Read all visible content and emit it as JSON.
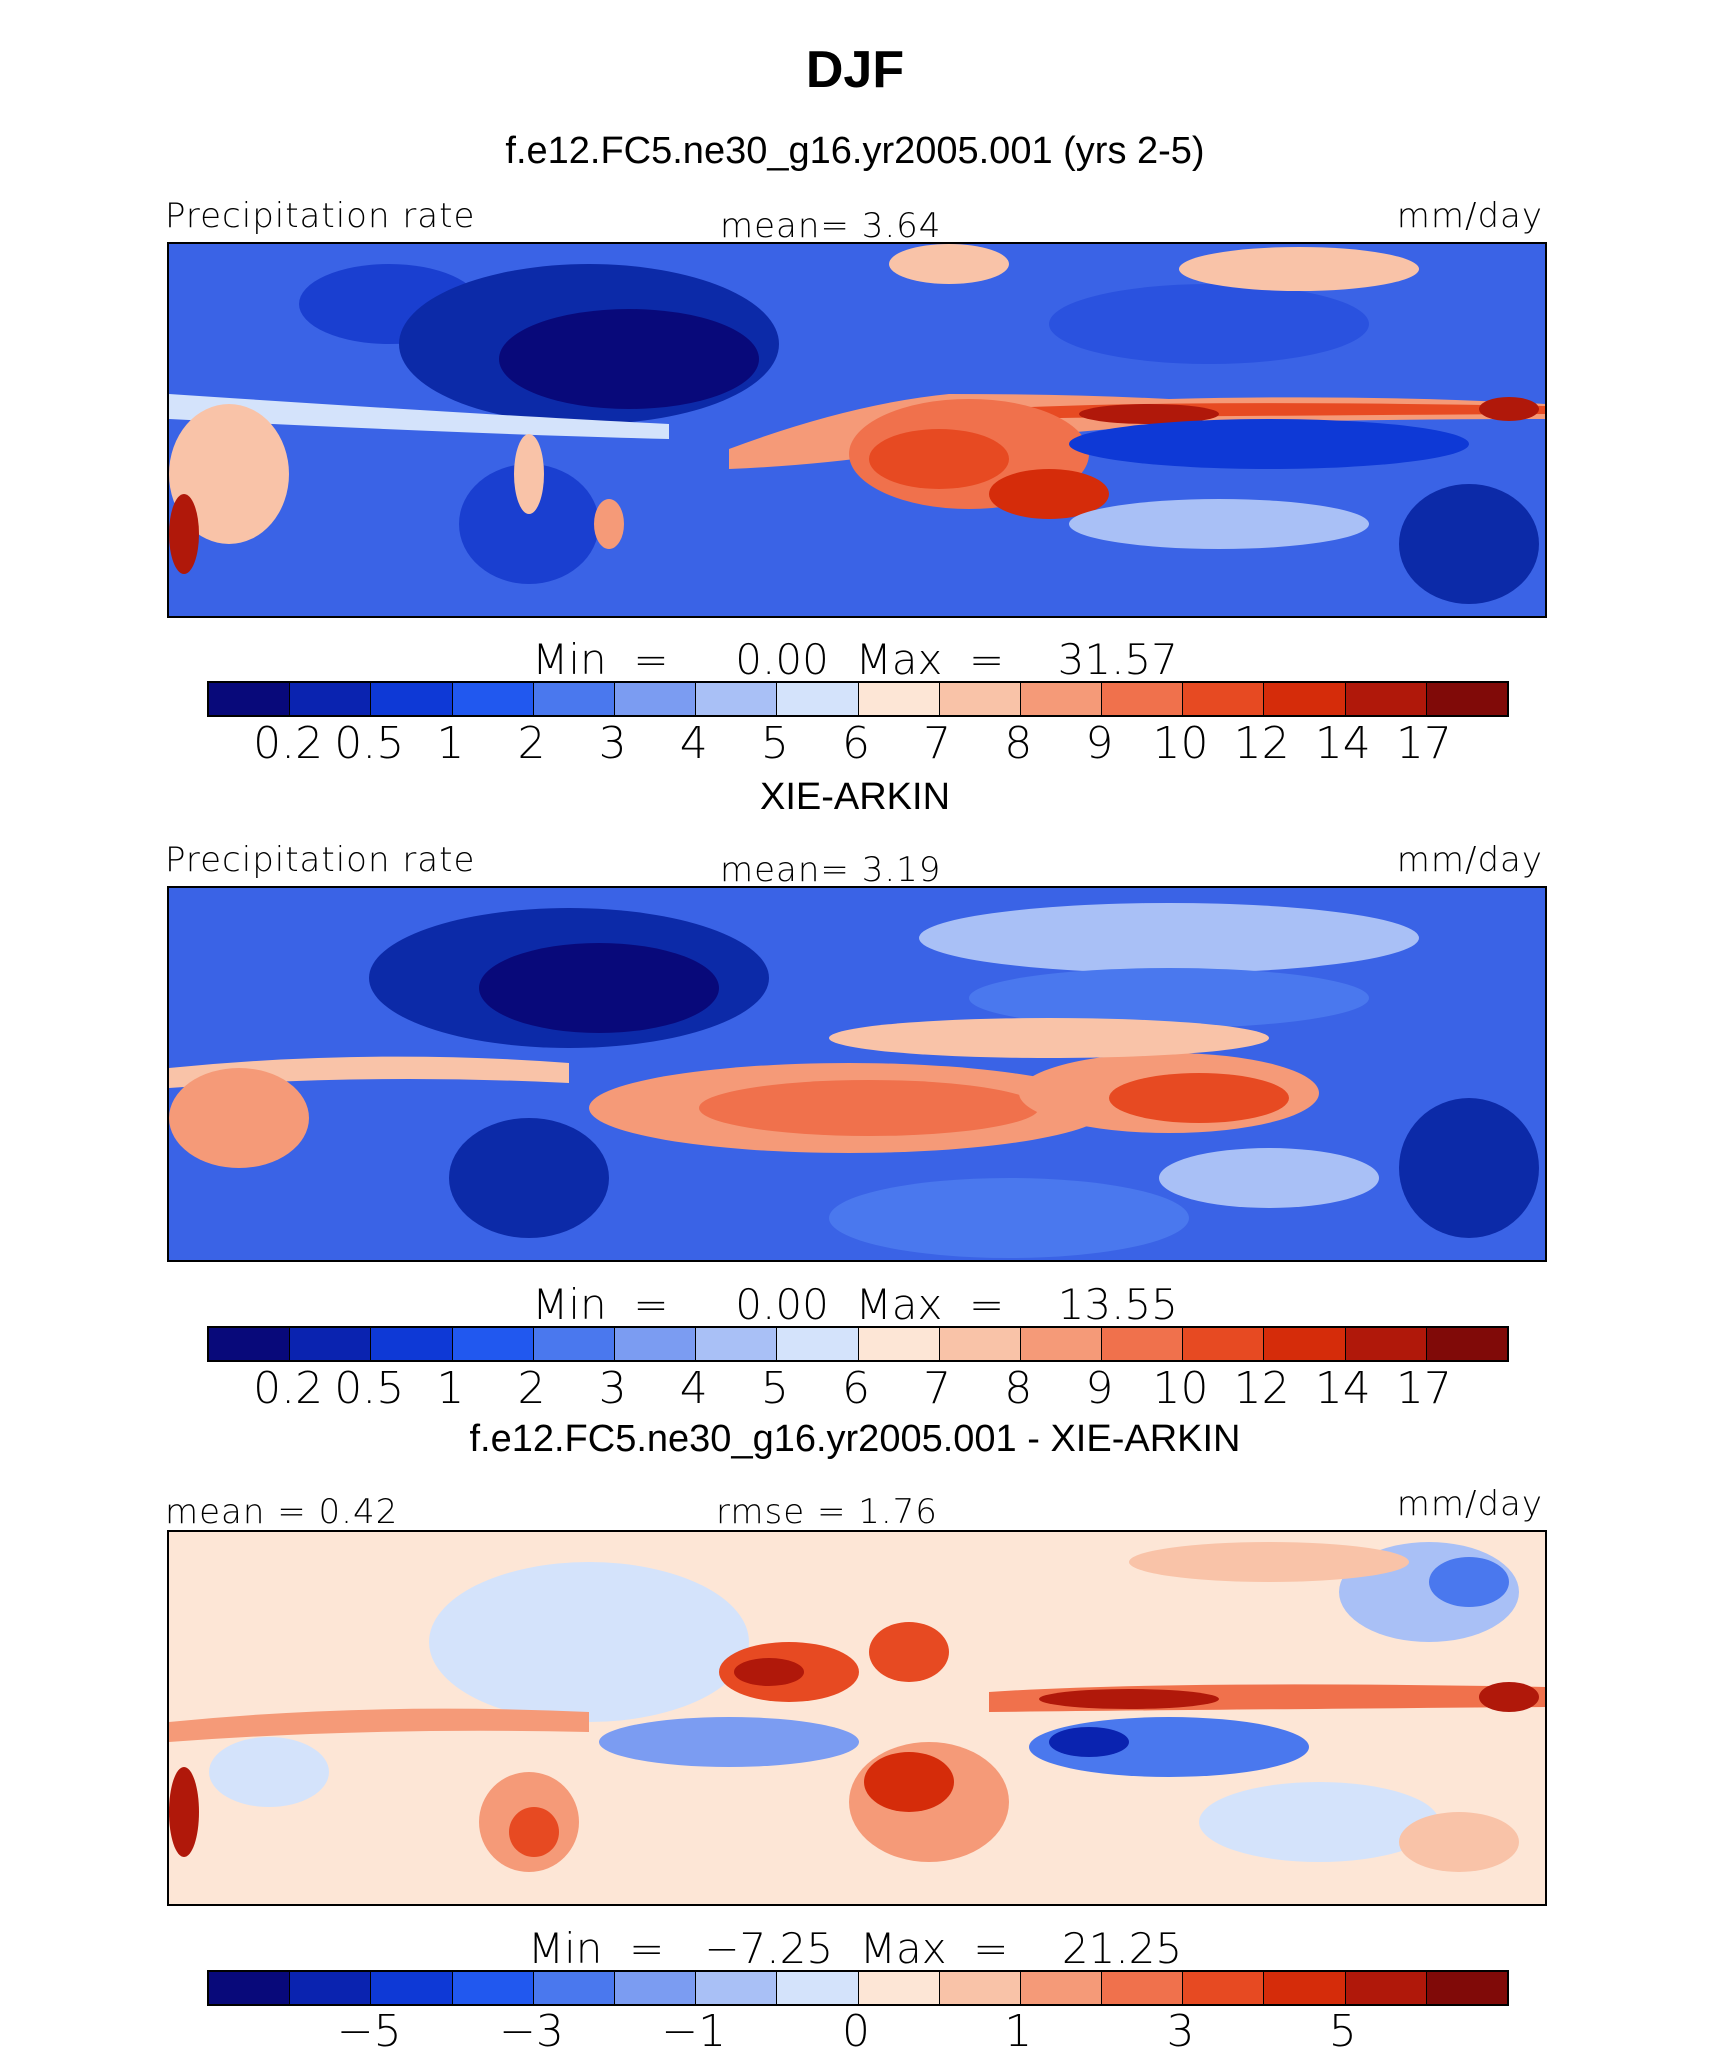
{
  "title": "DJF",
  "colors": {
    "levels_scale": [
      "#08097a",
      "#0a23b0",
      "#0e39d6",
      "#2158ef",
      "#4a78ee",
      "#7b9cf2",
      "#a9c0f6",
      "#d4e3fb",
      "#fde6d6",
      "#f9c3a8",
      "#f59a78",
      "#f0714c",
      "#e74a22",
      "#d52c0a",
      "#b0180a",
      "#800a08"
    ],
    "diff_scale": [
      "#08097a",
      "#0a23b0",
      "#0e39d6",
      "#2158ef",
      "#4a78ee",
      "#7b9cf2",
      "#a9c0f6",
      "#d4e3fb",
      "#fde6d6",
      "#f9c3a8",
      "#f59a78",
      "#f0714c",
      "#e74a22",
      "#d52c0a",
      "#b0180a",
      "#800a08"
    ]
  },
  "panels": [
    {
      "subtitle": "f.e12.FC5.ne30_g16.yr2005.001 (yrs 2-5)",
      "left_label": "Precipitation rate",
      "center_label": "mean=    3.64",
      "units": "mm/day",
      "minmax": "Min  =     0.00  Max  =    31.57",
      "ticks": [
        "0.2",
        "0.5",
        "1",
        "2",
        "3",
        "4",
        "5",
        "6",
        "7",
        "8",
        "9",
        "10",
        "12",
        "14",
        "17"
      ]
    },
    {
      "subtitle": "XIE-ARKIN",
      "left_label": "Precipitation rate",
      "center_label": "mean=    3.19",
      "units": "mm/day",
      "minmax": "Min  =     0.00  Max  =    13.55",
      "ticks": [
        "0.2",
        "0.5",
        "1",
        "2",
        "3",
        "4",
        "5",
        "6",
        "7",
        "8",
        "9",
        "10",
        "12",
        "14",
        "17"
      ]
    },
    {
      "subtitle": "f.e12.FC5.ne30_g16.yr2005.001 - XIE-ARKIN",
      "left_label": "mean  =    0.42",
      "center_label": "rmse  =    1.76",
      "units": "mm/day",
      "minmax": "Min  =   −7.25  Max  =    21.25",
      "ticks": [
        "−5",
        "−3",
        "−1",
        "0",
        "1",
        "3",
        "5"
      ]
    }
  ]
}
